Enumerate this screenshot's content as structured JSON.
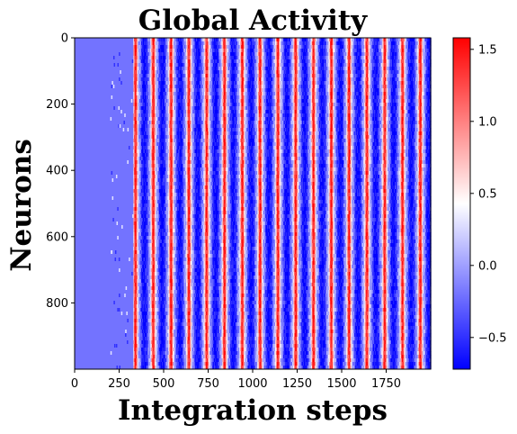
{
  "chart_data": {
    "type": "heatmap",
    "title": "Global Activity",
    "xlabel": "Integration steps",
    "ylabel": "Neurons",
    "xlim": [
      0,
      2000
    ],
    "ylim": [
      1000,
      0
    ],
    "x_ticks": [
      0,
      250,
      500,
      750,
      1000,
      1250,
      1500,
      1750
    ],
    "y_ticks": [
      0,
      200,
      400,
      600,
      800
    ],
    "colormap": "bwr",
    "colorbar": {
      "range": [
        -0.72,
        1.58
      ],
      "ticks": [
        -0.5,
        0.0,
        0.5,
        1.0,
        1.5
      ],
      "tick_labels": [
        "−0.5",
        "0.0",
        "0.5",
        "1.0",
        "1.5"
      ]
    },
    "rows": 1000,
    "columns": 2000,
    "description_of_values": {
      "quiescent_level": -0.2,
      "quiescent_until_step": 330,
      "oscillation_period_steps": 100,
      "peak_value": 1.55,
      "trough_value": -0.7,
      "first_peak_step": 340
    }
  },
  "colors": {
    "low": "#0000ff",
    "mid": "#ffffff",
    "high": "#ff0000"
  }
}
